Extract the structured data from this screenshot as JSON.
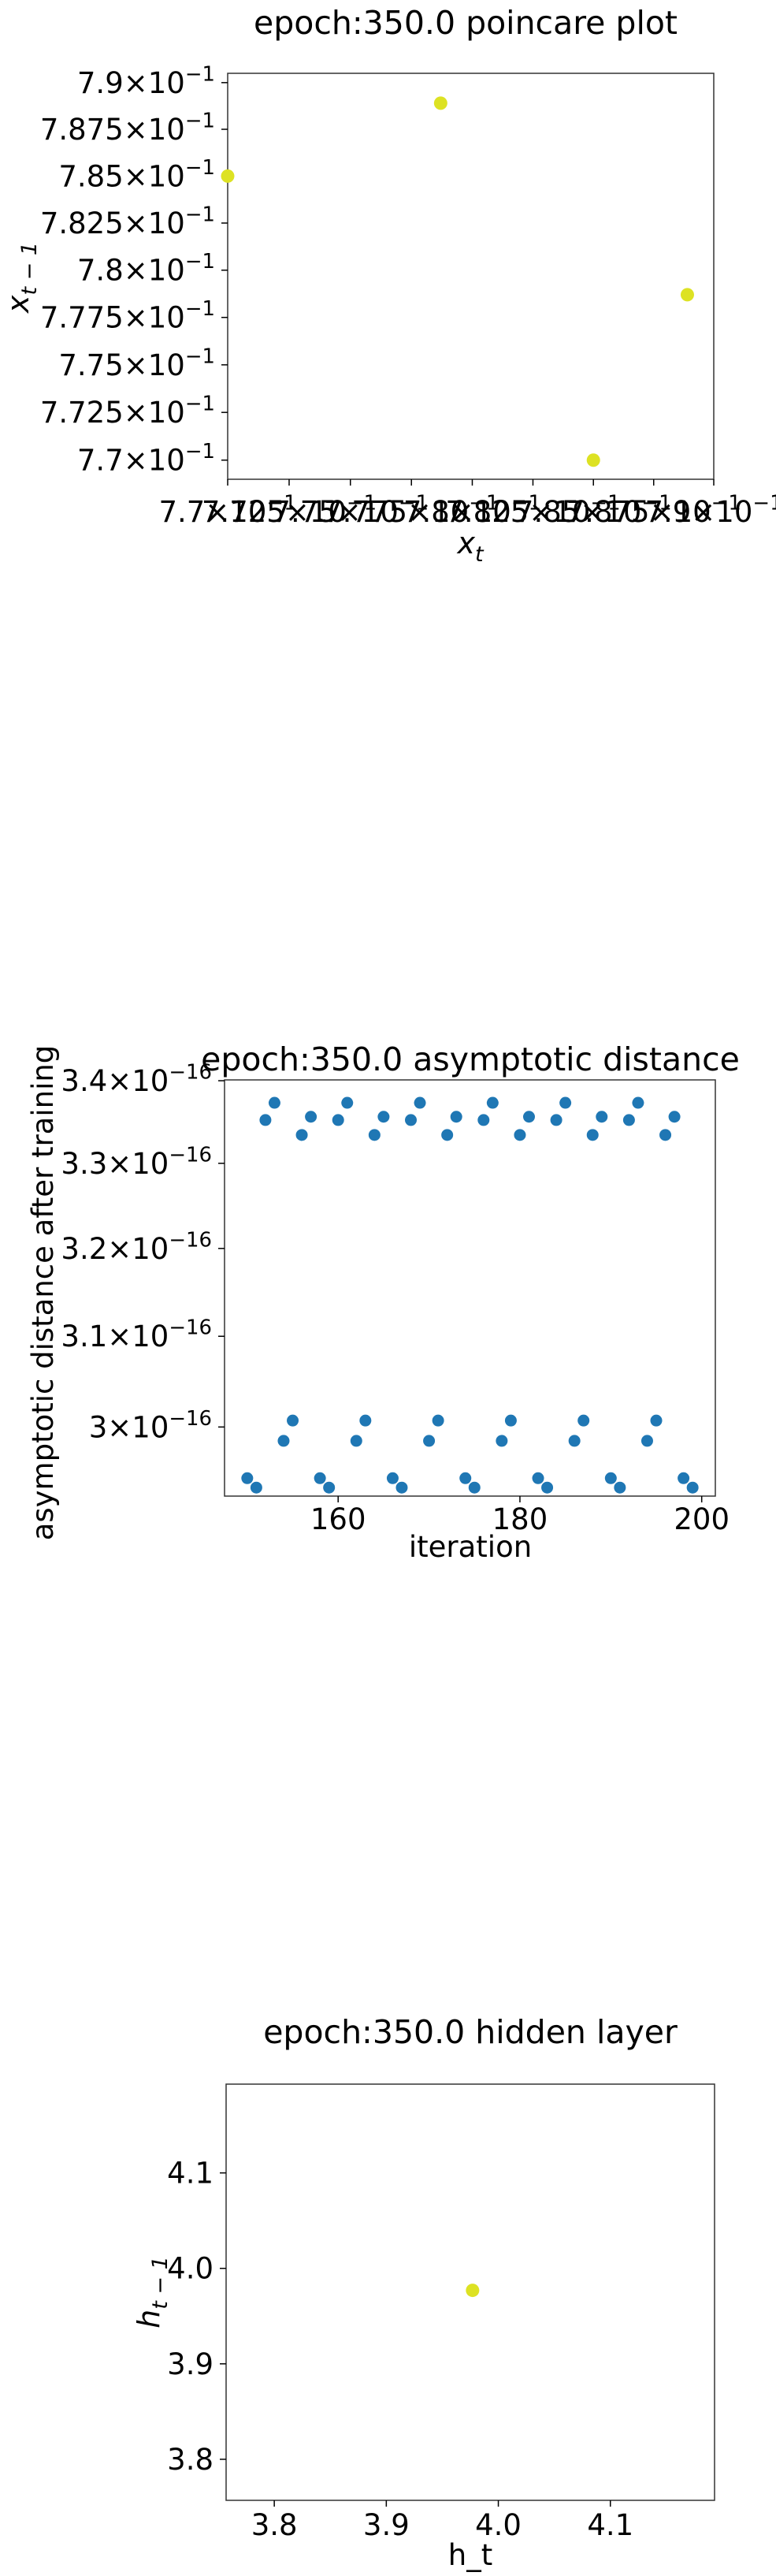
{
  "chart_data": [
    {
      "type": "scatter",
      "title": "epoch:350.0 poincare plot",
      "xlabel_main": "x",
      "xlabel_sub": "t",
      "ylabel_main": "x",
      "ylabel_sub": "t − 1",
      "xlim": [
        0.77,
        0.79
      ],
      "ylim": [
        0.769,
        0.7905
      ],
      "xscale": "log",
      "yscale": "log",
      "yticks": [
        {
          "value": 0.77,
          "mant": "7.7",
          "exp": "−1"
        },
        {
          "value": 0.7725,
          "mant": "7.725",
          "exp": "−1"
        },
        {
          "value": 0.775,
          "mant": "7.75",
          "exp": "−1"
        },
        {
          "value": 0.7775,
          "mant": "7.775",
          "exp": "−1"
        },
        {
          "value": 0.78,
          "mant": "7.8",
          "exp": "−1"
        },
        {
          "value": 0.7825,
          "mant": "7.825",
          "exp": "−1"
        },
        {
          "value": 0.785,
          "mant": "7.85",
          "exp": "−1"
        },
        {
          "value": 0.7875,
          "mant": "7.875",
          "exp": "−1"
        },
        {
          "value": 0.79,
          "mant": "7.9",
          "exp": "−1"
        }
      ],
      "xticks": [
        {
          "value": 0.77,
          "mant": "7.7",
          "exp": "−1"
        },
        {
          "value": 0.7725,
          "mant": "7.725",
          "exp": "−1"
        },
        {
          "value": 0.775,
          "mant": "7.75",
          "exp": "−1"
        },
        {
          "value": 0.7775,
          "mant": "7.775",
          "exp": "−1"
        },
        {
          "value": 0.78,
          "mant": "7.8",
          "exp": "−1"
        },
        {
          "value": 0.7825,
          "mant": "7.825",
          "exp": "−1"
        },
        {
          "value": 0.785,
          "mant": "7.85",
          "exp": "−1"
        },
        {
          "value": 0.7875,
          "mant": "7.875",
          "exp": "−1"
        },
        {
          "value": 0.79,
          "mant": "7.9",
          "exp": "−1"
        }
      ],
      "points": [
        {
          "x": 0.77,
          "y": 0.785
        },
        {
          "x": 0.785,
          "y": 0.77
        },
        {
          "x": 0.7889,
          "y": 0.7787
        },
        {
          "x": 0.7787,
          "y": 0.7889
        }
      ],
      "marker_color": "#dde223",
      "grid": false
    },
    {
      "type": "scatter",
      "title": "epoch:350.0 asymptotic distance",
      "xlabel": "iteration",
      "ylabel": "asymptotic distance after training",
      "xlim": [
        147.5,
        201.5
      ],
      "ylim": [
        2.926e-16,
        3.401e-16
      ],
      "yscale": "log",
      "xticks": [
        {
          "value": 160,
          "label": "160"
        },
        {
          "value": 180,
          "label": "180"
        },
        {
          "value": 200,
          "label": "200"
        }
      ],
      "yticks": [
        {
          "value": 3e-16,
          "mant": "3",
          "exp": "−16"
        },
        {
          "value": 3.1e-16,
          "mant": "3.1",
          "exp": "−16"
        },
        {
          "value": 3.2e-16,
          "mant": "3.2",
          "exp": "−16"
        },
        {
          "value": 3.3e-16,
          "mant": "3.3",
          "exp": "−16"
        },
        {
          "value": 3.4e-16,
          "mant": "3.4",
          "exp": "−16"
        }
      ],
      "x": [
        150,
        151,
        152,
        153,
        154,
        155,
        156,
        157,
        158,
        159,
        160,
        161,
        162,
        163,
        164,
        165,
        166,
        167,
        168,
        169,
        170,
        171,
        172,
        173,
        174,
        175,
        176,
        177,
        178,
        179,
        180,
        181,
        182,
        183,
        184,
        185,
        186,
        187,
        188,
        189,
        190,
        191,
        192,
        193,
        194,
        195,
        196,
        197,
        198,
        199
      ],
      "y": [
        2.945e-16,
        2.935e-16,
        3.352e-16,
        3.373e-16,
        2.985e-16,
        3.007e-16,
        3.334e-16,
        3.356e-16,
        2.945e-16,
        2.935e-16,
        3.352e-16,
        3.373e-16,
        2.985e-16,
        3.007e-16,
        3.334e-16,
        3.356e-16,
        2.945e-16,
        2.935e-16,
        3.352e-16,
        3.373e-16,
        2.985e-16,
        3.007e-16,
        3.334e-16,
        3.356e-16,
        2.945e-16,
        2.935e-16,
        3.352e-16,
        3.373e-16,
        2.985e-16,
        3.007e-16,
        3.334e-16,
        3.356e-16,
        2.945e-16,
        2.935e-16,
        3.352e-16,
        3.373e-16,
        2.985e-16,
        3.007e-16,
        3.334e-16,
        3.356e-16,
        2.945e-16,
        2.935e-16,
        3.352e-16,
        3.373e-16,
        2.985e-16,
        3.007e-16,
        3.334e-16,
        3.356e-16,
        2.945e-16,
        2.935e-16
      ],
      "marker_color": "#1f77b4",
      "grid": false
    },
    {
      "type": "scatter",
      "title": "epoch:350.0 hidden layer",
      "xlabel": "h_t",
      "ylabel_main": "h",
      "ylabel_sub": "t − 1",
      "xlim": [
        3.757,
        4.193
      ],
      "ylim": [
        3.757,
        4.193
      ],
      "xticks": [
        {
          "value": 3.8,
          "label": "3.8"
        },
        {
          "value": 3.9,
          "label": "3.9"
        },
        {
          "value": 4.0,
          "label": "4.0"
        },
        {
          "value": 4.1,
          "label": "4.1"
        }
      ],
      "yticks": [
        {
          "value": 3.8,
          "label": "3.8"
        },
        {
          "value": 3.9,
          "label": "3.9"
        },
        {
          "value": 4.0,
          "label": "4.0"
        },
        {
          "value": 4.1,
          "label": "4.1"
        }
      ],
      "points": [
        {
          "x": 3.977,
          "y": 3.977
        }
      ],
      "marker_color": "#dde223",
      "grid": false
    }
  ]
}
